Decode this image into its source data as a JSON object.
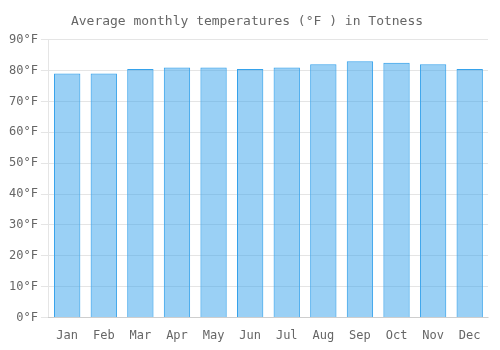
{
  "chart_data": {
    "type": "bar",
    "title": "Average monthly temperatures (°F ) in Totness",
    "categories": [
      "Jan",
      "Feb",
      "Mar",
      "Apr",
      "May",
      "Jun",
      "Jul",
      "Aug",
      "Sep",
      "Oct",
      "Nov",
      "Dec"
    ],
    "values": [
      79.0,
      79.0,
      80.5,
      81.0,
      81.0,
      80.5,
      81.0,
      82.0,
      83.0,
      82.5,
      82.0,
      80.5
    ],
    "ylim": [
      0,
      90
    ],
    "yticks": [
      {
        "value": 0,
        "label": "0°F"
      },
      {
        "value": 10,
        "label": "10°F"
      },
      {
        "value": 20,
        "label": "20°F"
      },
      {
        "value": 30,
        "label": "30°F"
      },
      {
        "value": 40,
        "label": "40°F"
      },
      {
        "value": 50,
        "label": "50°F"
      },
      {
        "value": 60,
        "label": "60°F"
      },
      {
        "value": 70,
        "label": "70°F"
      },
      {
        "value": 80,
        "label": "80°F"
      },
      {
        "value": 90,
        "label": "90°F"
      }
    ],
    "grid": true
  }
}
